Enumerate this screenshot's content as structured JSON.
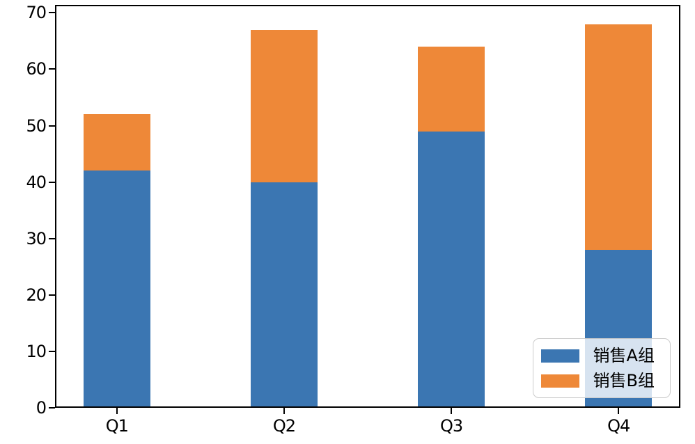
{
  "chart_data": {
    "type": "bar",
    "stacked": true,
    "title": "",
    "xlabel": "",
    "ylabel": "",
    "categories": [
      "Q1",
      "Q2",
      "Q3",
      "Q4"
    ],
    "series": [
      {
        "name": "销售A组",
        "color": "#3b76b2",
        "values": [
          42,
          40,
          49,
          28
        ]
      },
      {
        "name": "销售B组",
        "color": "#ee8838",
        "values": [
          10,
          27,
          15,
          40
        ]
      }
    ],
    "stack_totals": [
      52,
      67,
      64,
      68
    ],
    "yticks": [
      0,
      10,
      20,
      30,
      40,
      50,
      60,
      70
    ],
    "ytick_labels": [
      "0",
      "10",
      "20",
      "30",
      "40",
      "50",
      "60",
      "70"
    ],
    "ylim": [
      0,
      71.4
    ],
    "xlim": [
      -0.37,
      3.37
    ],
    "bar_width": 0.4,
    "grid": false,
    "legend_position": "lower right",
    "colors": {
      "axis": "#000000",
      "background": "#ffffff",
      "legend_border": "#cbcbcb",
      "legend_background": "rgba(255,255,255,0.8)"
    }
  }
}
